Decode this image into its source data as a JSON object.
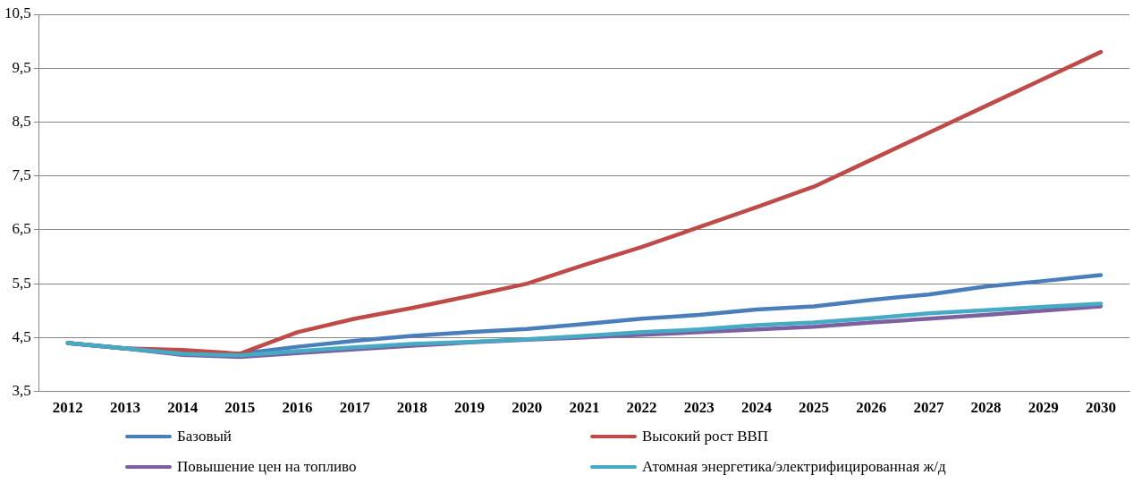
{
  "chart_data": {
    "type": "line",
    "categories": [
      "2012",
      "2013",
      "2014",
      "2015",
      "2016",
      "2017",
      "2018",
      "2019",
      "2020",
      "2021",
      "2022",
      "2023",
      "2024",
      "2025",
      "2026",
      "2027",
      "2028",
      "2029",
      "2030"
    ],
    "series": [
      {
        "name": "Базовый",
        "color": "#4a7ebb",
        "values": [
          4.4,
          4.3,
          4.22,
          4.2,
          4.33,
          4.44,
          4.53,
          4.6,
          4.66,
          4.75,
          4.85,
          4.92,
          5.02,
          5.08,
          5.2,
          5.3,
          5.45,
          5.55,
          5.66
        ]
      },
      {
        "name": "Высокий рост ВВП",
        "color": "#be4b48",
        "values": [
          4.4,
          4.3,
          4.27,
          4.2,
          4.6,
          4.85,
          5.05,
          5.27,
          5.5,
          5.85,
          6.18,
          6.55,
          6.92,
          7.3,
          7.8,
          8.3,
          8.8,
          9.3,
          9.8
        ]
      },
      {
        "name": "Повышение цен на топливо",
        "color": "#7d60a0",
        "values": [
          4.4,
          4.3,
          4.18,
          4.14,
          4.21,
          4.28,
          4.35,
          4.41,
          4.46,
          4.5,
          4.55,
          4.6,
          4.65,
          4.7,
          4.78,
          4.85,
          4.92,
          5.0,
          5.08
        ]
      },
      {
        "name": "Атомная энергетика/электрифицированная ж/д",
        "color": "#46aac5",
        "values": [
          4.4,
          4.3,
          4.2,
          4.17,
          4.25,
          4.32,
          4.38,
          4.42,
          4.47,
          4.53,
          4.6,
          4.65,
          4.73,
          4.78,
          4.86,
          4.95,
          5.01,
          5.07,
          5.13
        ]
      }
    ],
    "ylim": [
      3.5,
      10.5
    ],
    "yticks": [
      {
        "value": 3.5,
        "label": "3,5"
      },
      {
        "value": 4.5,
        "label": "4,5"
      },
      {
        "value": 5.5,
        "label": "5,5"
      },
      {
        "value": 6.5,
        "label": "6,5"
      },
      {
        "value": 7.5,
        "label": "7,5"
      },
      {
        "value": 8.5,
        "label": "8,5"
      },
      {
        "value": 9.5,
        "label": "9,5"
      },
      {
        "value": 10.5,
        "label": "10,5"
      }
    ],
    "grid": "y",
    "legend": "bottom",
    "marker": "none",
    "line_style": "solid"
  }
}
